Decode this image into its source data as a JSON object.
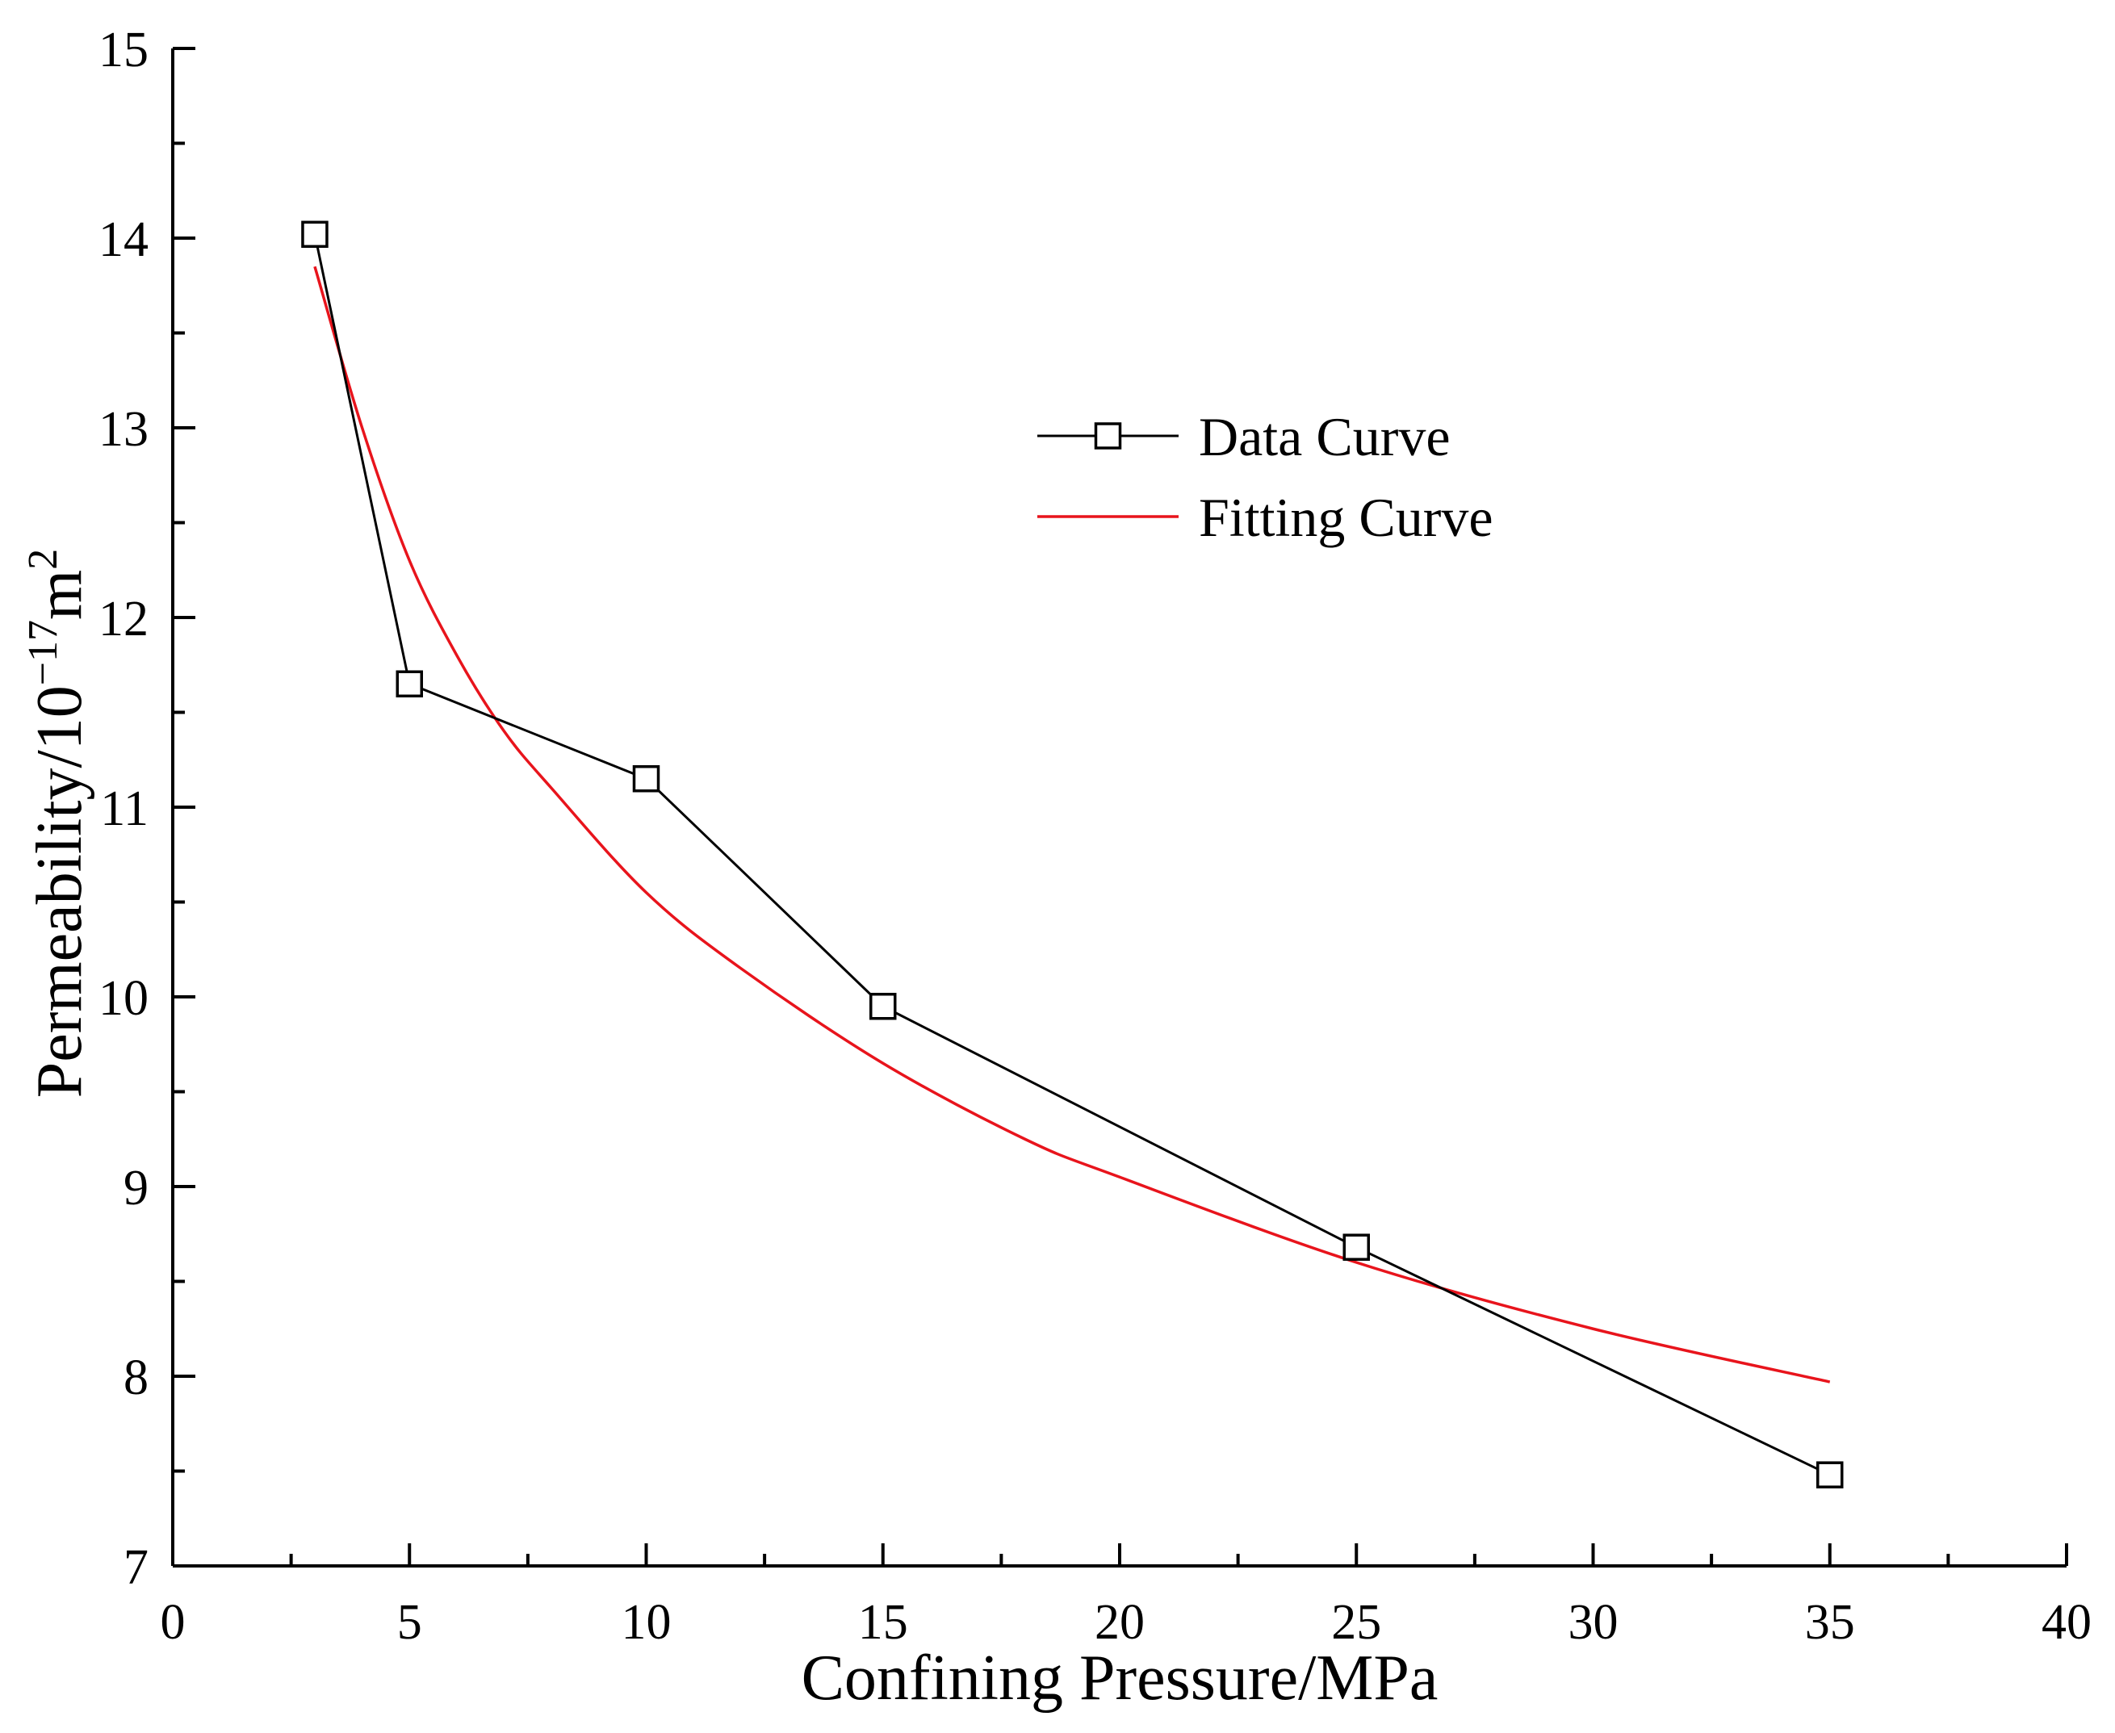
{
  "chart_data": {
    "type": "line",
    "title": "",
    "xlabel": "Confining Pressure/MPa",
    "ylabel_parts": {
      "base": "Permeability/10",
      "exp": "−17",
      "unit": "m",
      "unit_exp": "2"
    },
    "xlim": [
      0,
      40
    ],
    "ylim": [
      7,
      15
    ],
    "x_major_ticks": [
      0,
      5,
      10,
      15,
      20,
      25,
      30,
      35,
      40
    ],
    "x_tick_labels": [
      "0",
      "5",
      "10",
      "15",
      "20",
      "25",
      "30",
      "35",
      "40"
    ],
    "x_minor_ticks": [
      2.5,
      7.5,
      12.5,
      17.5,
      22.5,
      27.5,
      32.5,
      37.5
    ],
    "y_major_ticks": [
      7,
      8,
      9,
      10,
      11,
      12,
      13,
      14,
      15
    ],
    "y_tick_labels": [
      "7",
      "8",
      "9",
      "10",
      "11",
      "12",
      "13",
      "14",
      "15"
    ],
    "y_minor_ticks": [
      7.5,
      8.5,
      9.5,
      10.5,
      11.5,
      12.5,
      13.5,
      14.5
    ],
    "legend_position": "upper-right",
    "series": [
      {
        "name": "Data Curve",
        "style": "line-square-markers",
        "color": "#000000",
        "x": [
          3,
          5,
          10,
          15,
          25,
          35
        ],
        "y": [
          14.02,
          11.65,
          11.15,
          9.95,
          8.68,
          7.48
        ]
      },
      {
        "name": "Fitting Curve",
        "style": "line",
        "color": "#e8141c",
        "x": [
          3,
          4,
          5,
          6,
          7,
          8,
          10,
          12,
          15,
          18,
          20,
          25,
          30,
          35
        ],
        "y": [
          13.85,
          13.0,
          12.3,
          11.8,
          11.4,
          11.1,
          10.55,
          10.15,
          9.65,
          9.25,
          9.05,
          8.6,
          8.25,
          7.97
        ]
      }
    ]
  }
}
